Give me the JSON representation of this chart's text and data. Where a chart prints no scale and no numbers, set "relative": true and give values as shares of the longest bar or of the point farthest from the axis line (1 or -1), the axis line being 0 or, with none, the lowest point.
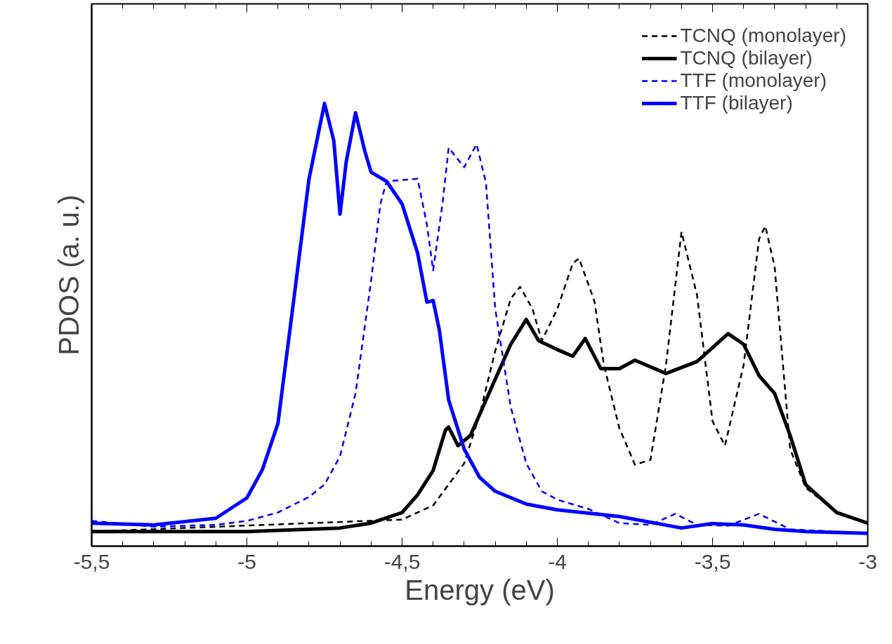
{
  "chart_data": {
    "type": "line",
    "relative": true,
    "xlabel": "Energy (eV)",
    "ylabel": "PDOS (a. u.)",
    "legend": "top right",
    "grid": false,
    "xlim": [
      -5.5,
      -3
    ],
    "xticks": [
      {
        "value": -5.5,
        "label": "-5,5"
      },
      {
        "value": -5.4,
        "label": null
      },
      {
        "value": -5.3,
        "label": null
      },
      {
        "value": -5.2,
        "label": null
      },
      {
        "value": -5.1,
        "label": null
      },
      {
        "value": -5,
        "label": "-5"
      },
      {
        "value": -4.9,
        "label": null
      },
      {
        "value": -4.8,
        "label": null
      },
      {
        "value": -4.7,
        "label": null
      },
      {
        "value": -4.6,
        "label": null
      },
      {
        "value": -4.5,
        "label": "-4,5"
      },
      {
        "value": -4.4,
        "label": null
      },
      {
        "value": -4.3,
        "label": null
      },
      {
        "value": -4.2,
        "label": null
      },
      {
        "value": -4.1,
        "label": null
      },
      {
        "value": -4,
        "label": "-4"
      },
      {
        "value": -3.9,
        "label": null
      },
      {
        "value": -3.8,
        "label": null
      },
      {
        "value": -3.7,
        "label": null
      },
      {
        "value": -3.6,
        "label": null
      },
      {
        "value": -3.5,
        "label": "-3,5"
      },
      {
        "value": -3.4,
        "label": null
      },
      {
        "value": -3.3,
        "label": null
      },
      {
        "value": -3.2,
        "label": null
      },
      {
        "value": -3.1,
        "label": null
      },
      {
        "value": -3,
        "label": "-3"
      }
    ],
    "series": [
      {
        "name": "TCNQ (monolayer)",
        "color": "#000000",
        "line_style": "dashed",
        "x": [
          -5.5,
          -4.5,
          -4.4,
          -4.3,
          -4.25,
          -4.2,
          -4.15,
          -4.12,
          -4.08,
          -4.05,
          -4.0,
          -3.95,
          -3.93,
          -3.88,
          -3.85,
          -3.8,
          -3.75,
          -3.7,
          -3.65,
          -3.6,
          -3.55,
          -3.5,
          -3.46,
          -3.4,
          -3.35,
          -3.33,
          -3.3,
          -3.25,
          -3.2,
          -3.1,
          -3.0
        ],
        "values": [
          0.033,
          0.06,
          0.092,
          0.187,
          0.298,
          0.441,
          0.559,
          0.586,
          0.536,
          0.464,
          0.536,
          0.639,
          0.65,
          0.552,
          0.409,
          0.266,
          0.184,
          0.195,
          0.409,
          0.71,
          0.567,
          0.282,
          0.227,
          0.409,
          0.694,
          0.723,
          0.631,
          0.219,
          0.132,
          0.076,
          0.052
        ]
      },
      {
        "name": "TCNQ (bilayer)",
        "color": "#000000",
        "line_style": "solid",
        "x": [
          -5.5,
          -5.0,
          -4.7,
          -4.6,
          -4.5,
          -4.45,
          -4.4,
          -4.36,
          -4.35,
          -4.32,
          -4.28,
          -4.2,
          -4.15,
          -4.1,
          -4.06,
          -4.0,
          -3.95,
          -3.91,
          -3.86,
          -3.8,
          -3.75,
          -3.65,
          -3.55,
          -3.45,
          -3.4,
          -3.35,
          -3.3,
          -3.25,
          -3.2,
          -3.1,
          -3.0
        ],
        "values": [
          0.033,
          0.033,
          0.041,
          0.052,
          0.076,
          0.116,
          0.171,
          0.263,
          0.269,
          0.227,
          0.25,
          0.377,
          0.456,
          0.512,
          0.464,
          0.444,
          0.429,
          0.469,
          0.401,
          0.401,
          0.42,
          0.39,
          0.417,
          0.48,
          0.456,
          0.385,
          0.345,
          0.25,
          0.139,
          0.076,
          0.052
        ]
      },
      {
        "name": "TTF (monolayer)",
        "color": "#0000ff",
        "line_style": "dashed",
        "x": [
          -5.5,
          -5.3,
          -5.1,
          -5.0,
          -4.9,
          -4.8,
          -4.75,
          -4.7,
          -4.65,
          -4.6,
          -4.57,
          -4.55,
          -4.5,
          -4.45,
          -4.42,
          -4.4,
          -4.37,
          -4.35,
          -4.3,
          -4.26,
          -4.23,
          -4.2,
          -4.15,
          -4.1,
          -4.05,
          -4.0,
          -3.9,
          -3.8,
          -3.7,
          -3.62,
          -3.55,
          -3.45,
          -3.35,
          -3.25,
          -3.0
        ],
        "values": [
          0.057,
          0.044,
          0.048,
          0.057,
          0.076,
          0.111,
          0.139,
          0.203,
          0.345,
          0.599,
          0.773,
          0.824,
          0.827,
          0.83,
          0.726,
          0.623,
          0.773,
          0.9,
          0.856,
          0.908,
          0.821,
          0.536,
          0.314,
          0.187,
          0.124,
          0.105,
          0.084,
          0.052,
          0.048,
          0.073,
          0.048,
          0.046,
          0.073,
          0.038,
          0.029
        ]
      },
      {
        "name": "TTF (bilayer)",
        "color": "#0000ff",
        "line_style": "solid",
        "x": [
          -5.5,
          -5.3,
          -5.1,
          -5.0,
          -4.95,
          -4.9,
          -4.85,
          -4.8,
          -4.75,
          -4.72,
          -4.7,
          -4.68,
          -4.65,
          -4.62,
          -4.6,
          -4.55,
          -4.5,
          -4.45,
          -4.42,
          -4.4,
          -4.38,
          -4.35,
          -4.3,
          -4.25,
          -4.2,
          -4.1,
          -4.0,
          -3.8,
          -3.6,
          -3.5,
          -3.4,
          -3.3,
          -3.2,
          -3.0
        ],
        "values": [
          0.052,
          0.048,
          0.063,
          0.109,
          0.173,
          0.277,
          0.551,
          0.829,
          1.0,
          0.916,
          0.75,
          0.868,
          0.979,
          0.892,
          0.845,
          0.824,
          0.773,
          0.662,
          0.551,
          0.555,
          0.488,
          0.33,
          0.219,
          0.155,
          0.124,
          0.095,
          0.082,
          0.067,
          0.041,
          0.051,
          0.048,
          0.038,
          0.033,
          0.029
        ]
      }
    ]
  }
}
